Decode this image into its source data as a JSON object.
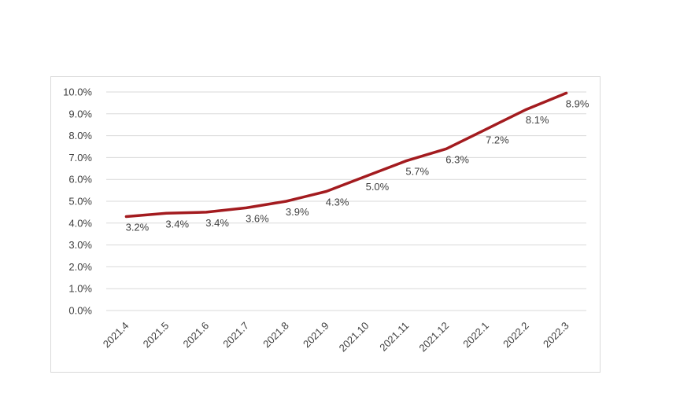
{
  "chart_data": {
    "type": "line",
    "categories": [
      "2021.4",
      "2021.5",
      "2021.6",
      "2021.7",
      "2021.8",
      "2021.9",
      "2021.10",
      "2021.11",
      "2021.12",
      "2022.1",
      "2022.2",
      "2022.3"
    ],
    "series": [
      {
        "values": [
          4.3,
          4.45,
          4.5,
          4.7,
          5.0,
          5.45,
          6.15,
          6.85,
          7.4,
          8.3,
          9.2,
          9.95
        ],
        "labels": [
          "3.2%",
          "3.4%",
          "3.4%",
          "3.6%",
          "3.9%",
          "4.3%",
          "5.0%",
          "5.7%",
          "6.3%",
          "7.2%",
          "8.1%",
          "8.9%"
        ],
        "color": "#a31b1f"
      }
    ],
    "ylim": [
      0,
      10
    ],
    "yticks": [
      "0.0%",
      "1.0%",
      "2.0%",
      "3.0%",
      "4.0%",
      "5.0%",
      "6.0%",
      "7.0%",
      "8.0%",
      "9.0%",
      "10.0%"
    ],
    "grid": true,
    "title": "",
    "xlabel": "",
    "ylabel": ""
  }
}
